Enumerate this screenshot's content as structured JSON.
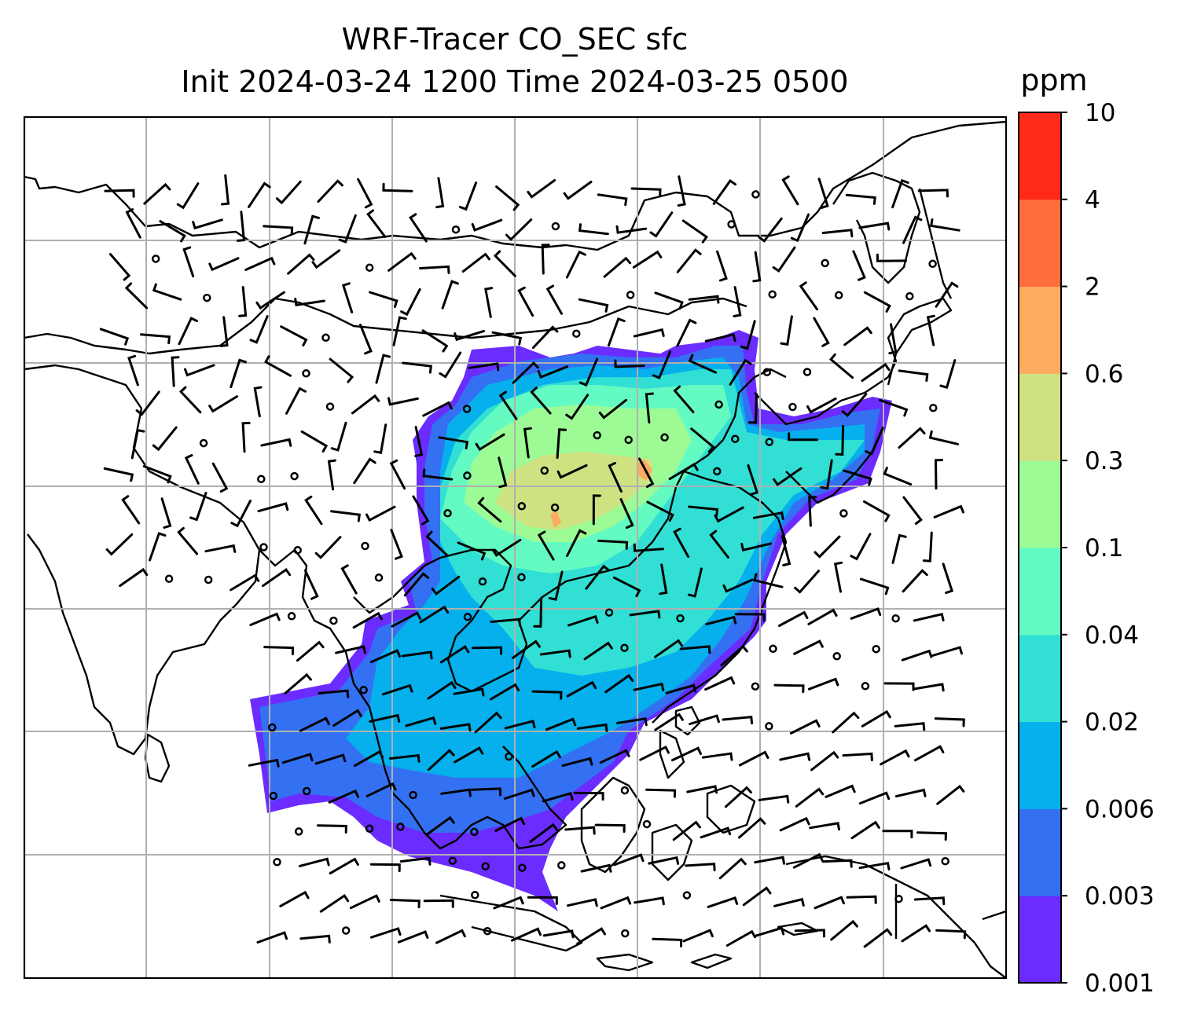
{
  "title": "WRF-Tracer CO_SEC sfc",
  "subtitle": "Init 2024-03-24 1200 Time 2024-03-25 0500",
  "colorbar": {
    "unit": "ppm",
    "levels": [
      "0.001",
      "0.003",
      "0.006",
      "0.02",
      "0.04",
      "0.1",
      "0.3",
      "0.6",
      "2",
      "4",
      "10"
    ],
    "colors": [
      "#6a2cff",
      "#3371f2",
      "#05b0ec",
      "#32dfd4",
      "#64fbc2",
      "#9dfb96",
      "#cee282",
      "#feab5f",
      "#fe6e3a",
      "#ff2b18"
    ]
  },
  "map": {
    "projection": "lat-lon",
    "gridlines": true,
    "overlay": "wind barbs",
    "region": "Asia (China, Southeast Asia, Maritime Continent)"
  }
}
